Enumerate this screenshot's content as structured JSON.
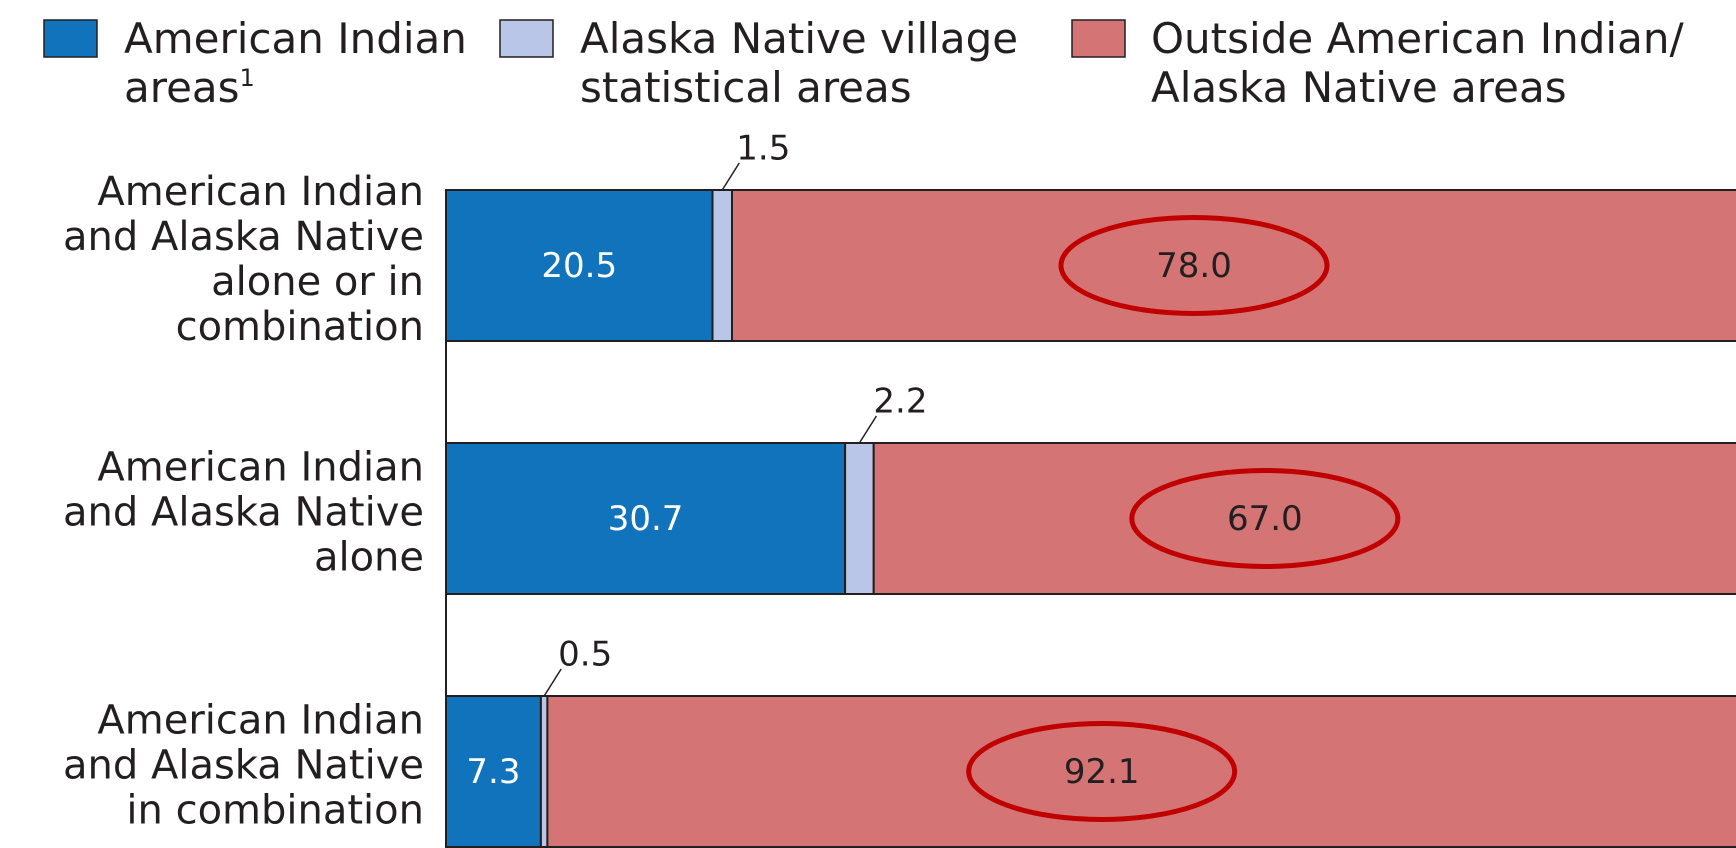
{
  "chart_data": {
    "type": "stacked-bar",
    "orientation": "horizontal",
    "categories": [
      [
        "American Indian",
        "and Alaska Native",
        "alone or in",
        "combination"
      ],
      [
        "American Indian",
        "and Alaska Native",
        "alone"
      ],
      [
        "American Indian",
        "and Alaska Native",
        "in combination"
      ]
    ],
    "series": [
      {
        "name": [
          "American Indian",
          "areas"
        ],
        "footnote_mark": "1",
        "color": "#1273bd",
        "values": [
          20.5,
          30.7,
          7.3
        ]
      },
      {
        "name": [
          "Alaska Native village",
          "statistical areas"
        ],
        "color": "#b9c6e7",
        "values": [
          1.5,
          2.2,
          0.5
        ]
      },
      {
        "name": [
          "Outside American Indian/",
          "Alaska Native areas"
        ],
        "color": "#d47474",
        "values": [
          78.0,
          67.0,
          92.1
        ],
        "value_labels": [
          "78.0",
          "67.0",
          "92.1"
        ],
        "highlighted": true
      }
    ],
    "xlim": [
      0,
      100
    ]
  }
}
